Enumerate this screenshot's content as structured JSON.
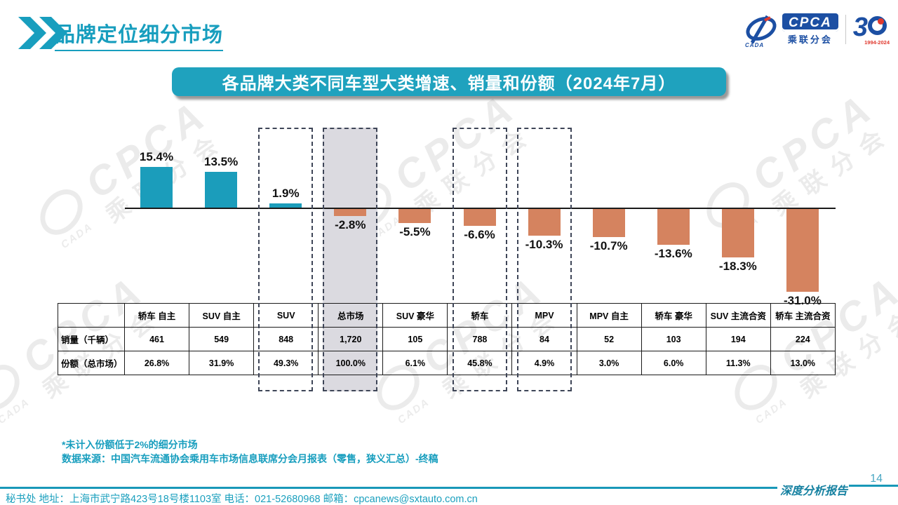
{
  "header": {
    "title": "品牌定位细分市场"
  },
  "logos": {
    "cpca_text": "CPCA",
    "cpca_sub": "乘联分会",
    "cada_text": "CADA",
    "anniversary_3": "3",
    "anniversary_years": "1994-2024"
  },
  "banner": {
    "title": "各品牌大类不同车型大类增速、销量和份额（2024年7月）"
  },
  "chart_data": {
    "type": "bar",
    "title": "各品牌大类不同车型大类增速、销量和份额（2024年7月）",
    "categories": [
      "轿车 自主",
      "SUV 自主",
      "SUV",
      "总市场",
      "SUV 豪华",
      "轿车",
      "MPV",
      "MPV 自主",
      "轿车 豪华",
      "SUV 主流合资",
      "轿车 主流合资"
    ],
    "series": [
      {
        "name": "增速",
        "values": [
          15.4,
          13.5,
          1.9,
          -2.8,
          -5.5,
          -6.6,
          -10.3,
          -10.7,
          -13.6,
          -18.3,
          -31.0
        ],
        "unit": "%"
      },
      {
        "name": "销量（千辆）",
        "values": [
          "461",
          "549",
          "848",
          "1,720",
          "105",
          "788",
          "84",
          "52",
          "103",
          "194",
          "224"
        ]
      },
      {
        "name": "份额（总市场）",
        "values": [
          "26.8%",
          "31.9%",
          "49.3%",
          "100.0%",
          "6.1%",
          "45.8%",
          "4.9%",
          "3.0%",
          "6.0%",
          "11.3%",
          "13.0%"
        ]
      }
    ],
    "bar_labels": [
      "15.4%",
      "13.5%",
      "1.9%",
      "-2.8%",
      "-5.5%",
      "-6.6%",
      "-10.3%",
      "-10.7%",
      "-13.6%",
      "-18.3%",
      "-31.0%"
    ],
    "highlight_dashed_indices": [
      2,
      3,
      5,
      6
    ],
    "highlight_filled_index": 3,
    "positive_color": "#1B9DBB",
    "negative_color": "#D5835F",
    "gridlines": false,
    "legend": "none",
    "baseline": 0
  },
  "table": {
    "row_headers": [
      "销量（千辆）",
      "份额（总市场）"
    ]
  },
  "notes": {
    "line1": "*未计入份额低于2%的细分市场",
    "line2": "数据来源：中国汽车流通协会乘用车市场信息联席分会月报表（零售，狭义汇总）-终稿"
  },
  "footer": {
    "contact": "秘书处  地址：上海市武宁路423号18号楼1103室  电话：021-52680968   邮箱：cpcanews@sxtauto.com.cn",
    "report_label": "深度分析报告",
    "page_number": "14"
  },
  "watermark": {
    "text_main": "CPCA",
    "text_sub": "乘联分会",
    "text_small": "CADA"
  }
}
